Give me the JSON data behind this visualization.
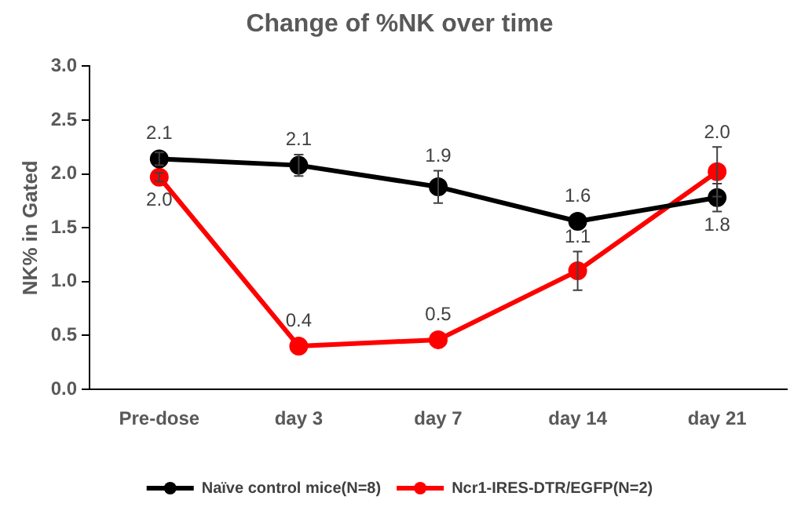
{
  "chart_data": {
    "type": "line",
    "title": "Change of %NK over time",
    "ylabel": "NK% in Gated",
    "categories": [
      "Pre-dose",
      "day 3",
      "day 7",
      "day 14",
      "day 21"
    ],
    "series": [
      {
        "name": "Naïve control mice(N=8)",
        "color": "#000000",
        "values": [
          2.14,
          2.08,
          1.88,
          1.56,
          1.78
        ],
        "errors": [
          0.06,
          0.1,
          0.15,
          null,
          0.13
        ],
        "value_labels": [
          "2.1",
          "2.1",
          "1.9",
          "1.6",
          "1.8"
        ]
      },
      {
        "name": "Ncr1-IRES-DTR/EGFP(N=2)",
        "color": "#ff0000",
        "values": [
          1.97,
          0.4,
          0.46,
          1.1,
          2.02
        ],
        "errors": [
          0.04,
          null,
          null,
          0.18,
          0.23
        ],
        "value_labels": [
          "2.0",
          "0.4",
          "0.5",
          "1.1",
          "2.0"
        ]
      }
    ],
    "ylim": [
      0,
      3
    ],
    "yticks": [
      {
        "value": 0,
        "label": "0.0"
      },
      {
        "value": 0.5,
        "label": "0.5"
      },
      {
        "value": 1,
        "label": "1.0"
      },
      {
        "value": 1.5,
        "label": "1.5"
      },
      {
        "value": 2,
        "label": "2.0"
      },
      {
        "value": 2.5,
        "label": "2.5"
      },
      {
        "value": 3,
        "label": "3.0"
      }
    ],
    "legend": "bottom",
    "marker": "circle",
    "line_style": "solid"
  }
}
